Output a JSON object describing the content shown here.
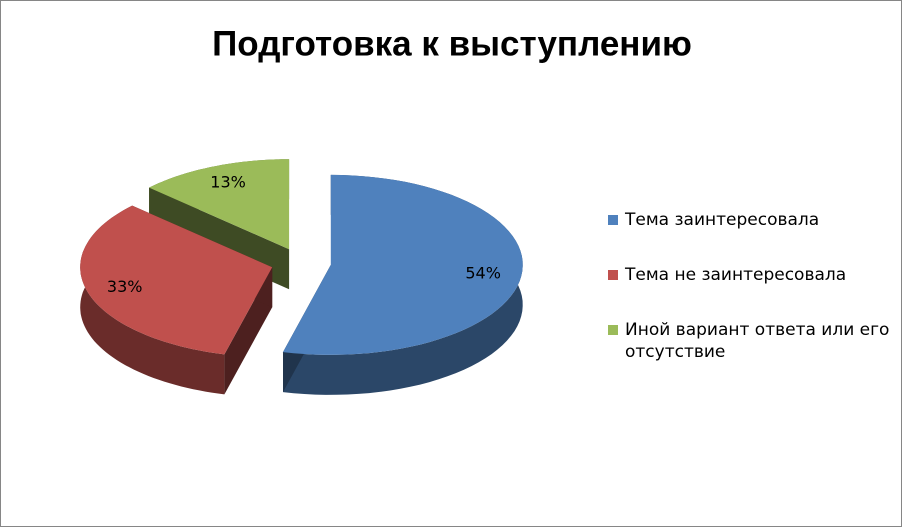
{
  "chart_data": {
    "type": "pie",
    "title": "Подготовка к выступлению",
    "categories": [
      "Тема заинтересовала",
      "Тема не заинтересовала",
      "Иной вариант ответа или его отсутствие"
    ],
    "values": [
      54,
      33,
      13
    ],
    "value_labels": [
      "54%",
      "33%",
      "13%"
    ],
    "colors": [
      "#4f81bd",
      "#c0504d",
      "#9bbb59"
    ],
    "legend": "right"
  }
}
